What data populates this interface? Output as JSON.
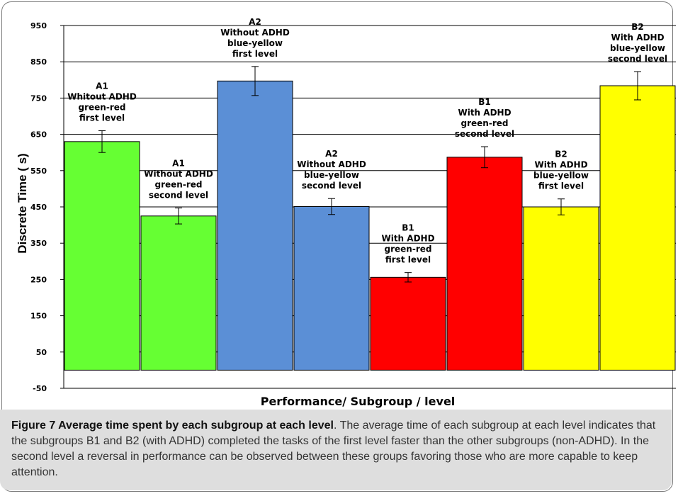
{
  "chart_data": {
    "type": "bar",
    "xlabel": "Performance/ Subgroup / level",
    "ylabel": "Discrete Time ( s)",
    "ylim": [
      -50,
      950
    ],
    "yticks": [
      950,
      850,
      750,
      650,
      550,
      450,
      350,
      250,
      150,
      50,
      -50
    ],
    "grid": true,
    "bars": [
      {
        "label": [
          "A1",
          "Whitout ADHD",
          "green-red",
          "first level"
        ],
        "value": 630,
        "error": 30,
        "color": "#66ff33"
      },
      {
        "label": [
          "A1",
          "Without ADHD",
          "green-red",
          "second level"
        ],
        "value": 425,
        "error": 22,
        "color": "#66ff33"
      },
      {
        "label": [
          "A2",
          "Without ADHD",
          "blue-yellow",
          "first level"
        ],
        "value": 797,
        "error": 40,
        "color": "#5b8fd6"
      },
      {
        "label": [
          "A2",
          "Without ADHD",
          "blue-yellow",
          "second level"
        ],
        "value": 451,
        "error": 22,
        "color": "#5b8fd6"
      },
      {
        "label": [
          "B1",
          "With ADHD",
          "green-red",
          "first level"
        ],
        "value": 256,
        "error": 13,
        "color": "#ff0000"
      },
      {
        "label": [
          "B1",
          "With ADHD",
          "green-red",
          "second level"
        ],
        "value": 587,
        "error": 29,
        "color": "#ff0000"
      },
      {
        "label": [
          "B2",
          "With ADHD",
          "blue-yellow",
          "first level"
        ],
        "value": 450,
        "error": 22,
        "color": "#ffff00"
      },
      {
        "label": [
          "B2",
          "With ADHD",
          "blue-yellow",
          "second level"
        ],
        "value": 784,
        "error": 39,
        "color": "#ffff00"
      }
    ]
  },
  "caption": {
    "title": "Figure 7 Average time spent by each subgroup at each level",
    "text": ". The average time of each subgroup at each level indicates that the subgroups B1 and B2 (with ADHD) completed the tasks of the first level faster than the other subgroups (non-ADHD). In the second level a reversal in performance can be observed between these groups favoring those who are more capable to keep attention."
  }
}
